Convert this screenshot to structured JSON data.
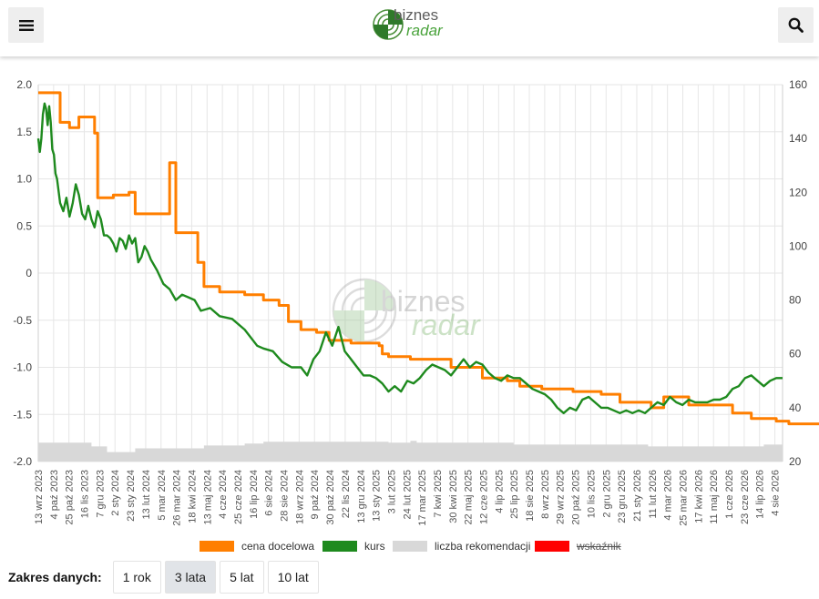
{
  "header": {
    "logo_line1": "biznes",
    "logo_line2": "radar",
    "icons": {
      "menu": "hamburger-icon",
      "search": "magnifier-icon"
    }
  },
  "watermark": {
    "line1": "biznes",
    "line2": "radar"
  },
  "colors": {
    "target": "#ff7f00",
    "price": "#1e8a1e",
    "count": "#d8d8d8",
    "indicator": "#ff0000"
  },
  "chart_data": {
    "type": "line",
    "left_axis": {
      "ticks": [
        "2.0",
        "1.5",
        "1.0",
        "0.5",
        "0",
        "-0.5",
        "-1.0",
        "-1.5",
        "-2.0"
      ],
      "range": [
        -2.0,
        2.0
      ]
    },
    "right_axis": {
      "ticks": [
        "160",
        "140",
        "120",
        "100",
        "80",
        "60",
        "40",
        "20"
      ],
      "range": [
        20,
        160
      ]
    },
    "x_tick_labels": [
      "13 wrz 2023",
      "4 paź 2023",
      "25 paź 2023",
      "16 lis 2023",
      "7 gru 2023",
      "2 sty 2024",
      "23 sty 2024",
      "13 lut 2024",
      "5 mar 2024",
      "26 mar 2024",
      "18 kwi 2024",
      "13 maj 2024",
      "4 cze 2024",
      "25 cze 2024",
      "16 lip 2024",
      "6 sie 2024",
      "28 sie 2024",
      "18 wrz 2024",
      "9 paź 2024",
      "30 paź 2024",
      "22 lis 2024",
      "13 gru 2024",
      "13 sty 2025",
      "3 lut 2025",
      "24 lut 2025",
      "17 mar 2025",
      "7 kwi 2025",
      "30 kwi 2025",
      "22 maj 2025",
      "12 cze 2025",
      "4 lip 2025",
      "25 lip 2025",
      "18 sie 2025",
      "8 wrz 2025",
      "29 wrz 2025",
      "20 paź 2025",
      "10 lis 2025",
      "2 gru 2025",
      "23 gru 2025",
      "21 sty 2026",
      "11 lut 2026",
      "4 mar 2026",
      "25 mar 2026",
      "17 kwi 2026",
      "11 maj 2026",
      "1 cze 2026",
      "23 cze 2026",
      "14 lip 2026",
      "4 sie 2026"
    ],
    "grid": true,
    "legend_placement": "bottom",
    "series": [
      {
        "name": "cena docelowa",
        "axis": "right",
        "step": true,
        "points": [
          [
            0,
            157
          ],
          [
            7,
            157
          ],
          [
            7,
            146
          ],
          [
            10,
            146
          ],
          [
            10,
            144
          ],
          [
            13,
            144
          ],
          [
            13,
            148
          ],
          [
            18,
            148
          ],
          [
            18,
            142
          ],
          [
            19,
            142
          ],
          [
            19,
            118
          ],
          [
            24,
            118
          ],
          [
            24,
            119
          ],
          [
            29,
            119
          ],
          [
            29,
            120
          ],
          [
            31,
            120
          ],
          [
            31,
            112
          ],
          [
            42,
            112
          ],
          [
            42,
            131
          ],
          [
            44,
            131
          ],
          [
            44,
            105
          ],
          [
            51,
            105
          ],
          [
            51,
            94
          ],
          [
            53,
            94
          ],
          [
            53,
            85
          ],
          [
            58,
            85
          ],
          [
            58,
            83
          ],
          [
            66,
            83
          ],
          [
            66,
            82
          ],
          [
            72,
            82
          ],
          [
            72,
            80
          ],
          [
            77,
            80
          ],
          [
            77,
            78
          ],
          [
            80,
            78
          ],
          [
            80,
            72
          ],
          [
            84,
            72
          ],
          [
            84,
            69
          ],
          [
            89,
            69
          ],
          [
            89,
            68
          ],
          [
            93,
            68
          ],
          [
            93,
            65
          ],
          [
            100,
            65
          ],
          [
            100,
            64
          ],
          [
            109,
            64
          ],
          [
            109,
            63
          ],
          [
            110,
            63
          ],
          [
            110,
            60
          ],
          [
            112,
            60
          ],
          [
            112,
            59
          ],
          [
            119,
            59
          ],
          [
            119,
            58
          ],
          [
            132,
            58
          ],
          [
            132,
            55
          ],
          [
            142,
            55
          ],
          [
            142,
            51
          ],
          [
            150,
            51
          ],
          [
            150,
            50
          ],
          [
            154,
            50
          ],
          [
            154,
            48
          ],
          [
            161,
            48
          ],
          [
            161,
            47
          ],
          [
            171,
            47
          ],
          [
            171,
            46
          ],
          [
            180,
            46
          ],
          [
            180,
            45
          ],
          [
            186,
            45
          ],
          [
            186,
            42
          ],
          [
            196,
            42
          ],
          [
            196,
            40
          ],
          [
            200,
            40
          ],
          [
            200,
            44
          ],
          [
            208,
            44
          ],
          [
            208,
            41
          ],
          [
            222,
            41
          ],
          [
            222,
            38
          ],
          [
            228,
            38
          ],
          [
            228,
            36
          ],
          [
            236,
            36
          ],
          [
            236,
            35
          ],
          [
            240,
            35
          ],
          [
            240,
            34
          ],
          [
            252,
            34
          ],
          [
            252,
            33
          ],
          [
            258,
            33
          ],
          [
            258,
            31
          ],
          [
            264,
            31
          ],
          [
            264,
            30
          ],
          [
            273,
            30
          ],
          [
            273,
            29
          ],
          [
            278,
            29
          ],
          [
            278,
            28
          ],
          [
            282,
            28
          ]
        ]
      },
      {
        "name": "kurs",
        "axis": "right",
        "points": [
          [
            0,
            140
          ],
          [
            0.5,
            135
          ],
          [
            1,
            140
          ],
          [
            1.5,
            149
          ],
          [
            2,
            153
          ],
          [
            2.5,
            151
          ],
          [
            3,
            145
          ],
          [
            3.5,
            152
          ],
          [
            4,
            146
          ],
          [
            4.5,
            136
          ],
          [
            5,
            134
          ],
          [
            5.5,
            127
          ],
          [
            6,
            125
          ],
          [
            7,
            116
          ],
          [
            8,
            113
          ],
          [
            9,
            118
          ],
          [
            10,
            111
          ],
          [
            11,
            116
          ],
          [
            12,
            123
          ],
          [
            13,
            119
          ],
          [
            14,
            112
          ],
          [
            15,
            110
          ],
          [
            16,
            115
          ],
          [
            17,
            110
          ],
          [
            18,
            107
          ],
          [
            19,
            113
          ],
          [
            20,
            110
          ],
          [
            21,
            104
          ],
          [
            22,
            104
          ],
          [
            23,
            103
          ],
          [
            24,
            101
          ],
          [
            25,
            98
          ],
          [
            26,
            103
          ],
          [
            27,
            102
          ],
          [
            28,
            99
          ],
          [
            29,
            104
          ],
          [
            30,
            101
          ],
          [
            31,
            103
          ],
          [
            32,
            94
          ],
          [
            33,
            96
          ],
          [
            34,
            100
          ],
          [
            35,
            98
          ],
          [
            36,
            95
          ],
          [
            38,
            91
          ],
          [
            40,
            86
          ],
          [
            42,
            84
          ],
          [
            44,
            80
          ],
          [
            46,
            82
          ],
          [
            48,
            81
          ],
          [
            50,
            80
          ],
          [
            52,
            76
          ],
          [
            55,
            77
          ],
          [
            58,
            74
          ],
          [
            62,
            73
          ],
          [
            66,
            69
          ],
          [
            70,
            63
          ],
          [
            72,
            62
          ],
          [
            75,
            61
          ],
          [
            78,
            57
          ],
          [
            81,
            55
          ],
          [
            84,
            55
          ],
          [
            86,
            52
          ],
          [
            88,
            58
          ],
          [
            90,
            61
          ],
          [
            92,
            68
          ],
          [
            94,
            63
          ],
          [
            96,
            70
          ],
          [
            98,
            61
          ],
          [
            100,
            58
          ],
          [
            102,
            55
          ],
          [
            104,
            52
          ],
          [
            106,
            52
          ],
          [
            108,
            51
          ],
          [
            110,
            49
          ],
          [
            112,
            46
          ],
          [
            114,
            48
          ],
          [
            116,
            46
          ],
          [
            118,
            50
          ],
          [
            120,
            49
          ],
          [
            122,
            51
          ],
          [
            124,
            54
          ],
          [
            126,
            56
          ],
          [
            128,
            55
          ],
          [
            130,
            54
          ],
          [
            132,
            52
          ],
          [
            134,
            55
          ],
          [
            136,
            58
          ],
          [
            138,
            55
          ],
          [
            140,
            57
          ],
          [
            142,
            56
          ],
          [
            144,
            53
          ],
          [
            146,
            51
          ],
          [
            148,
            50
          ],
          [
            150,
            52
          ],
          [
            152,
            51
          ],
          [
            154,
            51
          ],
          [
            156,
            49
          ],
          [
            158,
            47
          ],
          [
            160,
            46
          ],
          [
            162,
            45
          ],
          [
            164,
            43
          ],
          [
            166,
            40
          ],
          [
            168,
            38
          ],
          [
            170,
            40
          ],
          [
            172,
            39
          ],
          [
            174,
            43
          ],
          [
            176,
            44
          ],
          [
            178,
            42
          ],
          [
            180,
            40
          ],
          [
            182,
            40
          ],
          [
            184,
            39
          ],
          [
            186,
            38
          ],
          [
            188,
            39
          ],
          [
            190,
            38
          ],
          [
            192,
            39
          ],
          [
            194,
            38
          ],
          [
            196,
            40
          ],
          [
            198,
            42
          ],
          [
            200,
            41
          ],
          [
            202,
            44
          ],
          [
            204,
            42
          ],
          [
            206,
            41
          ],
          [
            208,
            43
          ],
          [
            210,
            42
          ],
          [
            212,
            42
          ],
          [
            214,
            42
          ],
          [
            216,
            43
          ],
          [
            218,
            43
          ],
          [
            220,
            44
          ],
          [
            222,
            47
          ],
          [
            224,
            48
          ],
          [
            226,
            51
          ],
          [
            228,
            52
          ],
          [
            230,
            50
          ],
          [
            232,
            48
          ],
          [
            234,
            50
          ],
          [
            236,
            51
          ],
          [
            238,
            51
          ]
        ]
      },
      {
        "name": "liczba rekomendacji",
        "axis": "left",
        "type": "area-step",
        "baseline": -2.0,
        "points": [
          [
            0,
            -1.8
          ],
          [
            17,
            -1.8
          ],
          [
            17,
            -1.84
          ],
          [
            22,
            -1.84
          ],
          [
            22,
            -1.9
          ],
          [
            31,
            -1.9
          ],
          [
            31,
            -1.86
          ],
          [
            53,
            -1.86
          ],
          [
            53,
            -1.83
          ],
          [
            66,
            -1.83
          ],
          [
            66,
            -1.81
          ],
          [
            72,
            -1.81
          ],
          [
            72,
            -1.79
          ],
          [
            112,
            -1.79
          ],
          [
            112,
            -1.8
          ],
          [
            119,
            -1.8
          ],
          [
            119,
            -1.78
          ],
          [
            121,
            -1.78
          ],
          [
            121,
            -1.8
          ],
          [
            152,
            -1.8
          ],
          [
            152,
            -1.82
          ],
          [
            195,
            -1.82
          ],
          [
            195,
            -1.84
          ],
          [
            232,
            -1.84
          ],
          [
            232,
            -1.82
          ],
          [
            238,
            -1.82
          ]
        ]
      },
      {
        "name": "wskaźnik",
        "axis": "left",
        "hidden": true,
        "points": []
      }
    ]
  },
  "range": {
    "label": "Zakres danych:",
    "buttons": [
      {
        "label": "1 rok",
        "active": false
      },
      {
        "label": "3 lata",
        "active": true
      },
      {
        "label": "5 lat",
        "active": false
      },
      {
        "label": "10 lat",
        "active": false
      }
    ]
  }
}
